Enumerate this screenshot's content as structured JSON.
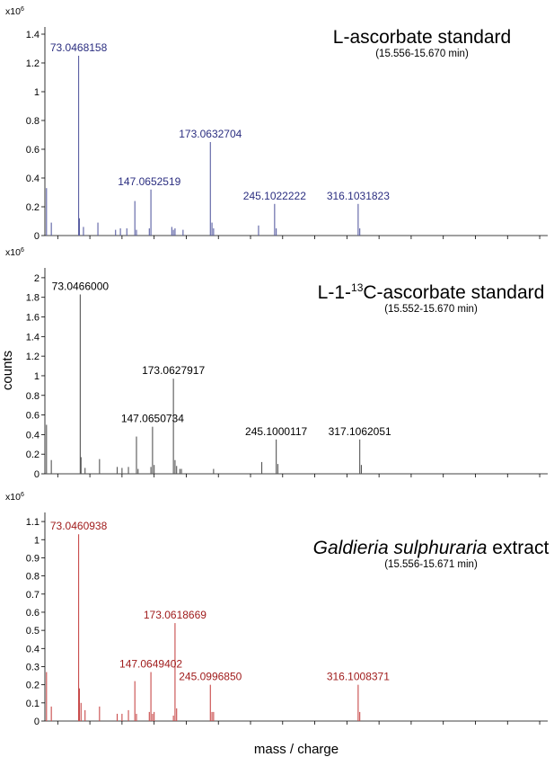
{
  "figure": {
    "ylabel": "counts",
    "xlabel": "mass / charge"
  },
  "chart_data": [
    {
      "type": "bar",
      "panel": "top",
      "title": "L-ascorbate standard",
      "title_italic": "",
      "title_rest": "",
      "subtitle": "(15.556-15.670 min)",
      "y_multiplier": "x10",
      "y_exponent": "6",
      "yticks": [
        "0",
        "0.2",
        "0.4",
        "0.6",
        "0.8",
        "1",
        "1.2",
        "1.4"
      ],
      "ylim": [
        0,
        1.45
      ],
      "xlim": [
        52,
        365
      ],
      "grid": false,
      "color": "#5a5fa3",
      "label_color": "#2b2e80",
      "x": [
        53,
        56,
        73,
        73.5,
        76,
        85,
        96,
        99,
        103,
        108,
        109,
        117,
        118,
        131,
        132,
        133,
        138,
        155,
        156,
        157,
        185,
        195,
        196,
        247,
        248
      ],
      "values": [
        0.33,
        0.09,
        1.25,
        0.12,
        0.06,
        0.09,
        0.04,
        0.05,
        0.05,
        0.24,
        0.04,
        0.05,
        0.32,
        0.06,
        0.04,
        0.05,
        0.04,
        0.65,
        0.09,
        0.05,
        0.07,
        0.22,
        0.05,
        0.22,
        0.05
      ],
      "peak_labels": [
        {
          "x": 73,
          "y": 1.25,
          "text": "73.0468158"
        },
        {
          "x": 117,
          "y": 0.32,
          "text": "147.0652519"
        },
        {
          "x": 155,
          "y": 0.65,
          "text": "173.0632704"
        },
        {
          "x": 195,
          "y": 0.22,
          "text": "245.1022222"
        },
        {
          "x": 247,
          "y": 0.22,
          "text": "316.1031823"
        }
      ]
    },
    {
      "type": "bar",
      "panel": "middle",
      "title": "L-1-",
      "title_sup": "13",
      "title_after": "C-ascorbate standard",
      "subtitle": "(15.552-15.670 min)",
      "y_multiplier": "x10",
      "y_exponent": "6",
      "yticks": [
        "0",
        "0.2",
        "0.4",
        "0.6",
        "0.8",
        "1",
        "1.2",
        "1.4",
        "1.6",
        "1.8",
        "2"
      ],
      "ylim": [
        0,
        2.1
      ],
      "xlim": [
        52,
        365
      ],
      "grid": false,
      "color": "#555555",
      "label_color": "#000000",
      "x": [
        53,
        56,
        74,
        74.5,
        77,
        86,
        97,
        100,
        104,
        109,
        110,
        118,
        119,
        120,
        132,
        133,
        134,
        136,
        137,
        157,
        187,
        196,
        197,
        248,
        249
      ],
      "values": [
        0.5,
        0.14,
        1.83,
        0.17,
        0.06,
        0.15,
        0.07,
        0.06,
        0.07,
        0.38,
        0.05,
        0.07,
        0.48,
        0.09,
        0.97,
        0.14,
        0.08,
        0.05,
        0.05,
        0.05,
        0.12,
        0.35,
        0.1,
        0.35,
        0.09
      ],
      "peak_labels": [
        {
          "x": 74,
          "y": 1.83,
          "text": "73.0466000"
        },
        {
          "x": 119,
          "y": 0.48,
          "text": "147.0650734"
        },
        {
          "x": 132,
          "y": 0.97,
          "text": "173.0627917"
        },
        {
          "x": 196,
          "y": 0.35,
          "text": "245.1000117"
        },
        {
          "x": 248,
          "y": 0.35,
          "text": "317.1062051"
        }
      ]
    },
    {
      "type": "bar",
      "panel": "bottom",
      "title": "",
      "title_italic": "Galdieria sulphuraria",
      "title_rest": " extract",
      "subtitle": "(15.556-15.671 min)",
      "y_multiplier": "x10",
      "y_exponent": "6",
      "yticks": [
        "0",
        "0.1",
        "0.2",
        "0.3",
        "0.4",
        "0.5",
        "0.6",
        "0.7",
        "0.8",
        "0.9",
        "1",
        "1.1"
      ],
      "ylim": [
        0,
        1.15
      ],
      "xlim": [
        52,
        365
      ],
      "grid": false,
      "color": "#c84a4a",
      "label_color": "#a01c1c",
      "x": [
        53,
        56,
        73,
        73.5,
        74.5,
        77,
        86,
        97,
        100,
        104,
        108,
        109,
        117,
        118,
        119,
        120,
        132,
        133,
        134,
        155,
        156,
        157,
        247,
        248
      ],
      "values": [
        0.27,
        0.08,
        1.03,
        0.18,
        0.1,
        0.06,
        0.08,
        0.04,
        0.04,
        0.06,
        0.22,
        0.04,
        0.05,
        0.27,
        0.04,
        0.05,
        0.03,
        0.54,
        0.07,
        0.2,
        0.05,
        0.05,
        0.2,
        0.05
      ],
      "peak_labels": [
        {
          "x": 73,
          "y": 1.03,
          "text": "73.0460938"
        },
        {
          "x": 118,
          "y": 0.27,
          "text": "147.0649402"
        },
        {
          "x": 133,
          "y": 0.54,
          "text": "173.0618669"
        },
        {
          "x": 155,
          "y": 0.2,
          "text": "245.0996850"
        },
        {
          "x": 247,
          "y": 0.2,
          "text": "316.1008371"
        }
      ]
    }
  ]
}
